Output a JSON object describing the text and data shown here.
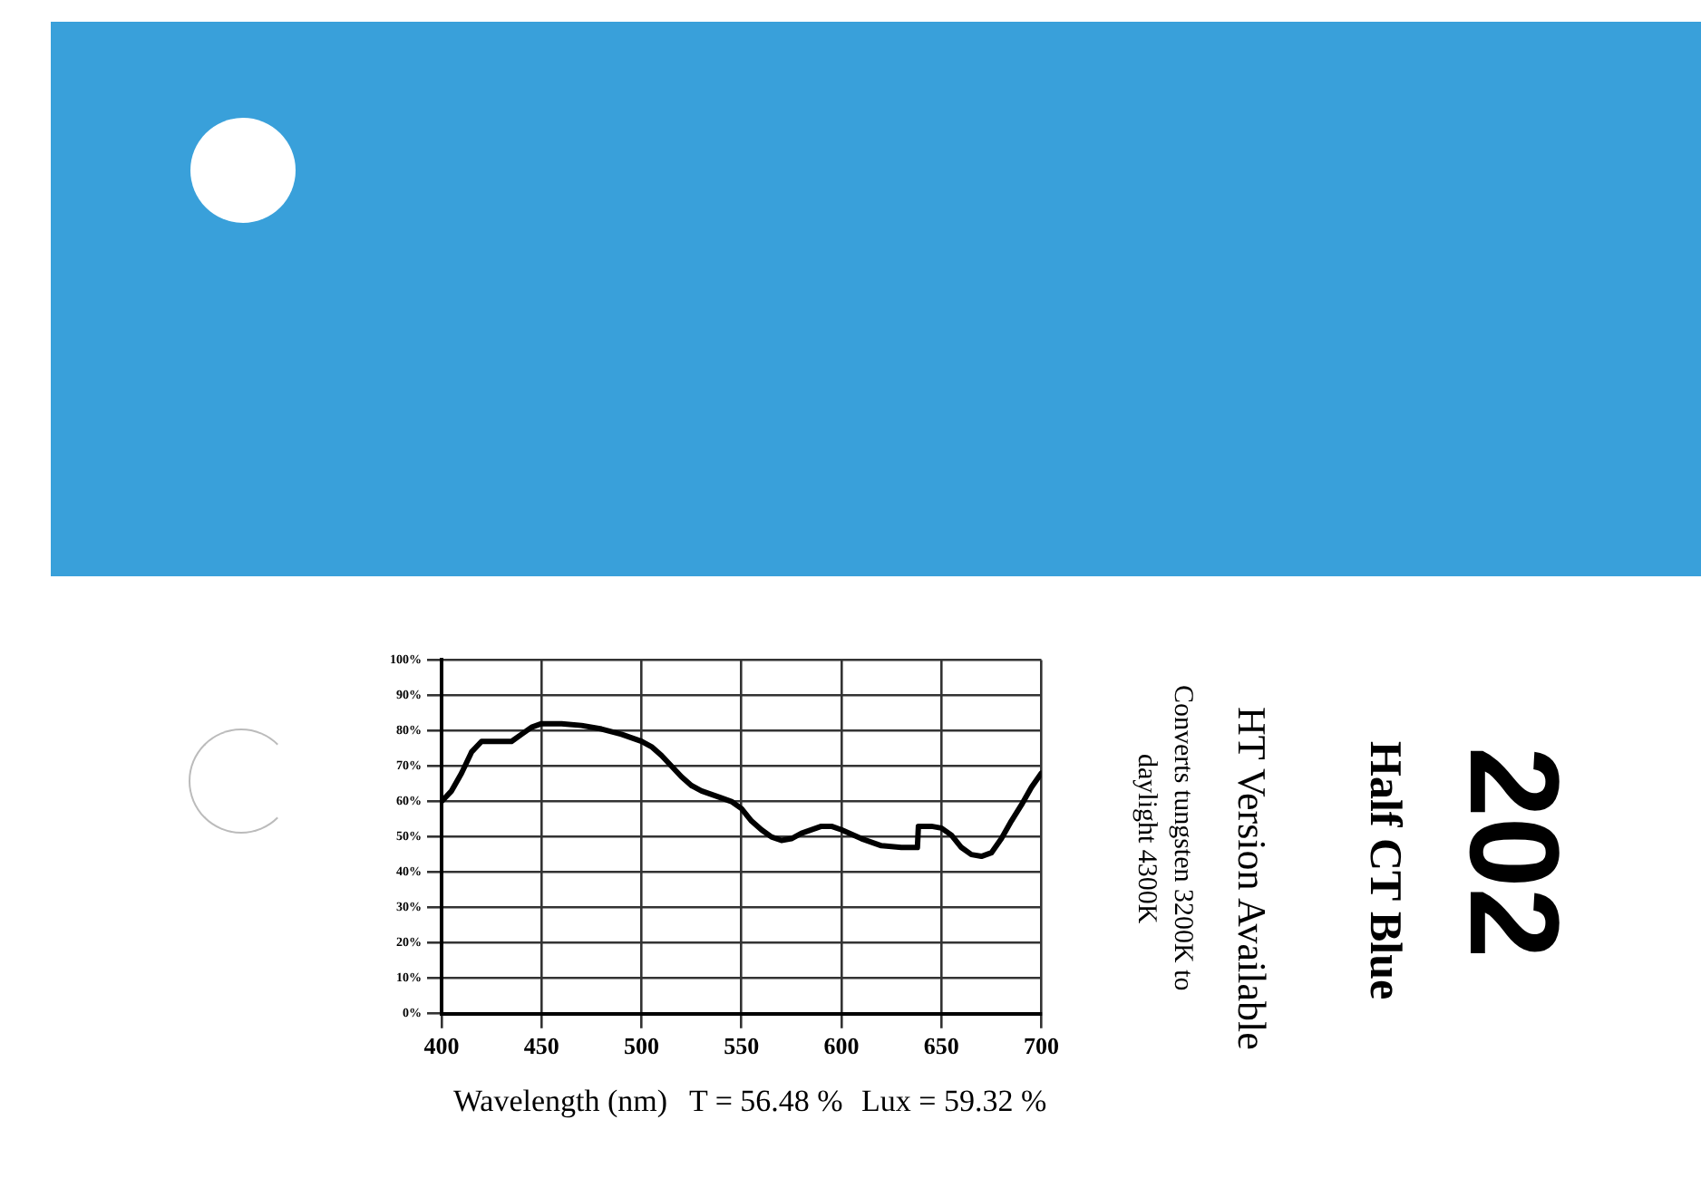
{
  "chart_data": {
    "type": "line",
    "title": "202",
    "subtitle": "Half CT Blue",
    "xlabel": "Wavelength (nm)",
    "annotations": [
      "T = 56.48 %",
      "Lux = 59.32 %",
      "HT Version Available",
      "Converts tungsten 3200K to daylight 4300K"
    ],
    "x": [
      400,
      405,
      410,
      415,
      420,
      430,
      435,
      440,
      445,
      450,
      460,
      470,
      480,
      490,
      500,
      505,
      510,
      515,
      520,
      525,
      530,
      540,
      545,
      550,
      555,
      560,
      565,
      570,
      575,
      580,
      590,
      595,
      600,
      610,
      620,
      630,
      635,
      638,
      638.5,
      645,
      650,
      655,
      660,
      665,
      670,
      675,
      680,
      685,
      690,
      695,
      700
    ],
    "series": [
      {
        "color": "#000000",
        "values": [
          60,
          63,
          68,
          74,
          77,
          77,
          77,
          79,
          81,
          82,
          82,
          81.5,
          80.5,
          79,
          77,
          75.5,
          73,
          70,
          67,
          64.5,
          63,
          61,
          60,
          58,
          54.5,
          52,
          50,
          49,
          49.5,
          51,
          53,
          53,
          52,
          49.5,
          47.5,
          47,
          47,
          47,
          53,
          53,
          52.5,
          50.5,
          47,
          45,
          44.5,
          45.5,
          49.5,
          54.5,
          59,
          64,
          68
        ]
      }
    ],
    "xlim": [
      400,
      700
    ],
    "xticks": [
      400,
      450,
      500,
      550,
      600,
      650,
      700
    ],
    "ylim": [
      0,
      100
    ],
    "yticks": [
      {
        "value": 0,
        "label": "0%"
      },
      {
        "value": 10,
        "label": "10%"
      },
      {
        "value": 20,
        "label": "20%"
      },
      {
        "value": 30,
        "label": "30%"
      },
      {
        "value": 40,
        "label": "40%"
      },
      {
        "value": 50,
        "label": "50%"
      },
      {
        "value": 60,
        "label": "60%"
      },
      {
        "value": 70,
        "label": "70%"
      },
      {
        "value": 80,
        "label": "80%"
      },
      {
        "value": 90,
        "label": "90%"
      },
      {
        "value": 100,
        "label": "100%"
      }
    ],
    "grid": true,
    "legend": false,
    "marker": "none",
    "line_style": "solid"
  }
}
